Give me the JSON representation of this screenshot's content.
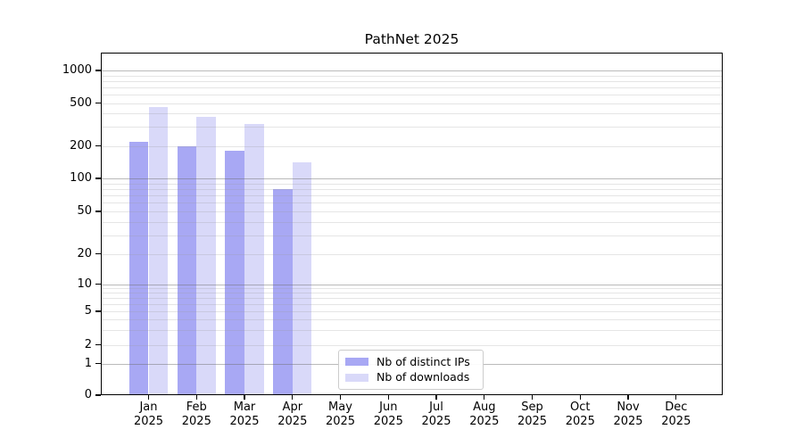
{
  "chart_data": {
    "type": "bar",
    "title": "PathNet 2025",
    "categories": [
      "Jan 2025",
      "Feb 2025",
      "Mar 2025",
      "Apr 2025",
      "May 2025",
      "Jun 2025",
      "Jul 2025",
      "Aug 2025",
      "Sep 2025",
      "Oct 2025",
      "Nov 2025",
      "Dec 2025"
    ],
    "series": [
      {
        "name": "Nb of distinct IPs",
        "color": "#a8a8f4",
        "values": [
          220,
          200,
          180,
          80,
          null,
          null,
          null,
          null,
          null,
          null,
          null,
          null
        ]
      },
      {
        "name": "Nb of downloads",
        "color": "#d9d9f9",
        "values": [
          460,
          370,
          320,
          140,
          null,
          null,
          null,
          null,
          null,
          null,
          null,
          null
        ]
      }
    ],
    "xlabel": "",
    "ylabel": "",
    "yscale": "symlog",
    "yticks": [
      0,
      1,
      2,
      5,
      10,
      20,
      50,
      100,
      200,
      500,
      1000
    ],
    "ylim": [
      0,
      1400
    ],
    "grid": true,
    "legend_position": "lower center-left inside plot"
  },
  "colors": {
    "background": "#ffffff",
    "spine": "#000000",
    "major_grid": "#b6b6b6",
    "minor_grid": "#e7e7e7",
    "text": "#000000"
  }
}
